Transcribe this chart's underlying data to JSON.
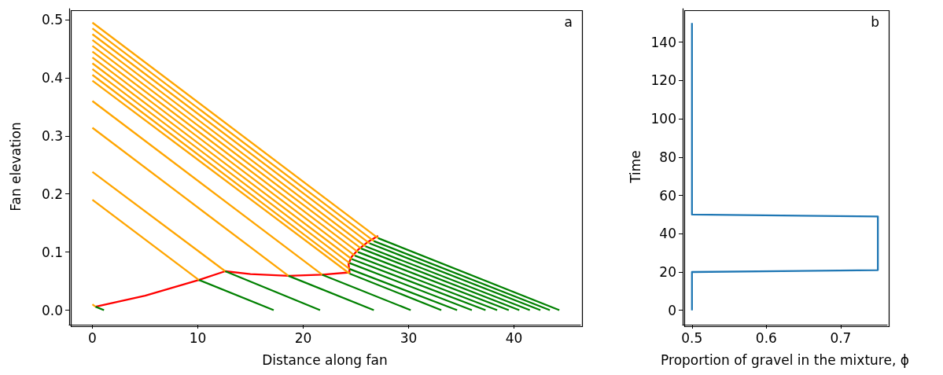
{
  "chart_data": [
    {
      "type": "line",
      "xlabel": "Distance along fan",
      "ylabel": "Fan elevation",
      "annotations": [
        "a"
      ],
      "xlim": [
        -2.2,
        46.3
      ],
      "xticks": [
        0,
        10,
        20,
        30,
        40
      ],
      "ylim": [
        -0.025,
        0.519
      ],
      "yticks": [
        {
          "value": 0,
          "label": "0.0"
        },
        0.1,
        0.2,
        0.3,
        0.4,
        0.5
      ],
      "marker": "none",
      "line_style": "solid",
      "series": [
        {
          "color": "#ff0000",
          "x": [
            0.3,
            5,
            10.1,
            12.6,
            15,
            18.6,
            21.8,
            24.4,
            24.3,
            24.6,
            25.2,
            26.1,
            27.1
          ],
          "values": [
            0.006,
            0.025,
            0.052,
            0.067,
            0.062,
            0.059,
            0.061,
            0.065,
            0.08,
            0.092,
            0.104,
            0.117,
            0.128
          ]
        },
        {
          "color": "#ffa500",
          "x": [
            0,
            27.1
          ],
          "values": [
            0.495,
            0.124
          ]
        },
        {
          "color": "#ffa500",
          "x": [
            0,
            26.7
          ],
          "values": [
            0.485,
            0.119
          ]
        },
        {
          "color": "#ffa500",
          "x": [
            0,
            26.3
          ],
          "values": [
            0.475,
            0.115
          ]
        },
        {
          "color": "#ffa500",
          "x": [
            0,
            25.9
          ],
          "values": [
            0.465,
            0.11
          ]
        },
        {
          "color": "#ffa500",
          "x": [
            0,
            25.5
          ],
          "values": [
            0.455,
            0.106
          ]
        },
        {
          "color": "#ffa500",
          "x": [
            0,
            25.2
          ],
          "values": [
            0.445,
            0.1
          ]
        },
        {
          "color": "#ffa500",
          "x": [
            0,
            24.9
          ],
          "values": [
            0.435,
            0.094
          ]
        },
        {
          "color": "#ffa500",
          "x": [
            0,
            24.6
          ],
          "values": [
            0.425,
            0.088
          ]
        },
        {
          "color": "#ffa500",
          "x": [
            0,
            24.4
          ],
          "values": [
            0.415,
            0.081
          ]
        },
        {
          "color": "#ffa500",
          "x": [
            0,
            24.4
          ],
          "values": [
            0.405,
            0.071
          ]
        },
        {
          "color": "#ffa500",
          "x": [
            0,
            24.4
          ],
          "values": [
            0.395,
            0.063
          ]
        },
        {
          "color": "#ffa500",
          "x": [
            0,
            21.8
          ],
          "values": [
            0.36,
            0.061
          ]
        },
        {
          "color": "#ffa500",
          "x": [
            0,
            18.6
          ],
          "values": [
            0.314,
            0.059
          ]
        },
        {
          "color": "#ffa500",
          "x": [
            0,
            12.6
          ],
          "values": [
            0.238,
            0.067
          ]
        },
        {
          "color": "#ffa500",
          "x": [
            0,
            10.1
          ],
          "values": [
            0.19,
            0.052
          ]
        },
        {
          "color": "#ffa500",
          "x": [
            0,
            0.3
          ],
          "values": [
            0.01,
            0.006
          ]
        },
        {
          "color": "#008000",
          "x": [
            27.1,
            44.3
          ],
          "values": [
            0.124,
            0
          ]
        },
        {
          "color": "#008000",
          "x": [
            26.7,
            43.4
          ],
          "values": [
            0.119,
            0
          ]
        },
        {
          "color": "#008000",
          "x": [
            26.3,
            42.5
          ],
          "values": [
            0.115,
            0
          ]
        },
        {
          "color": "#008000",
          "x": [
            25.9,
            41.5
          ],
          "values": [
            0.11,
            0
          ]
        },
        {
          "color": "#008000",
          "x": [
            25.5,
            40.5
          ],
          "values": [
            0.106,
            0
          ]
        },
        {
          "color": "#008000",
          "x": [
            25.2,
            39.5
          ],
          "values": [
            0.1,
            0
          ]
        },
        {
          "color": "#008000",
          "x": [
            24.9,
            38.4
          ],
          "values": [
            0.094,
            0
          ]
        },
        {
          "color": "#008000",
          "x": [
            24.6,
            37.3
          ],
          "values": [
            0.088,
            0
          ]
        },
        {
          "color": "#008000",
          "x": [
            24.4,
            36.0
          ],
          "values": [
            0.081,
            0
          ]
        },
        {
          "color": "#008000",
          "x": [
            24.4,
            34.6
          ],
          "values": [
            0.071,
            0
          ]
        },
        {
          "color": "#008000",
          "x": [
            24.4,
            33.1
          ],
          "values": [
            0.063,
            0
          ]
        },
        {
          "color": "#008000",
          "x": [
            21.8,
            30.2
          ],
          "values": [
            0.061,
            0
          ]
        },
        {
          "color": "#008000",
          "x": [
            18.6,
            26.7
          ],
          "values": [
            0.059,
            0
          ]
        },
        {
          "color": "#008000",
          "x": [
            12.6,
            21.6
          ],
          "values": [
            0.067,
            0
          ]
        },
        {
          "color": "#008000",
          "x": [
            10.1,
            17.2
          ],
          "values": [
            0.052,
            0
          ]
        },
        {
          "color": "#008000",
          "x": [
            0.3,
            1.1
          ],
          "values": [
            0.006,
            0
          ]
        }
      ]
    },
    {
      "type": "line",
      "xlabel": "Proportion of gravel in the mixture, ϕ",
      "ylabel": "Time",
      "annotations": [
        "b"
      ],
      "xlim": [
        0.4875,
        0.7625
      ],
      "xticks": [
        0.5,
        0.6,
        0.7
      ],
      "ylim": [
        -7.5,
        157.5
      ],
      "yticks": [
        0,
        20,
        40,
        60,
        80,
        100,
        120,
        140
      ],
      "marker": "none",
      "line_style": "solid",
      "series": [
        {
          "color": "#1f77b4",
          "x": [
            0.5,
            0.5,
            0.75,
            0.75,
            0.5,
            0.5
          ],
          "values": [
            0,
            20,
            21,
            49,
            50,
            150
          ]
        }
      ]
    }
  ]
}
